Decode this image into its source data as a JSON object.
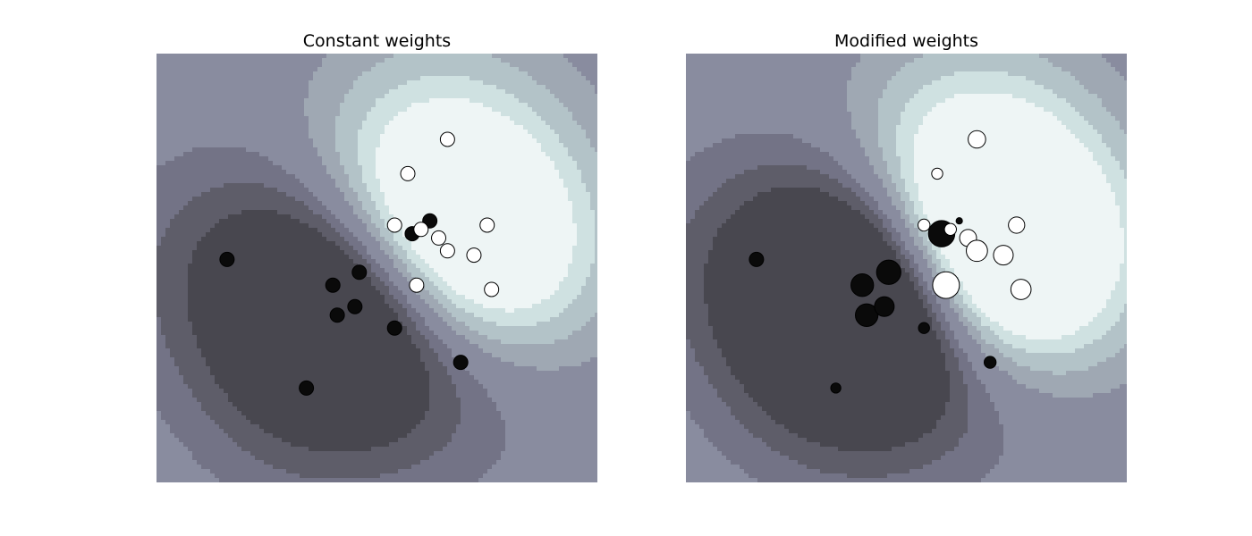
{
  "chart_data": [
    {
      "type": "scatter",
      "title": "Constant weights",
      "grid": false,
      "colors": {
        "class_pos": "#ffffff",
        "class_neg": "#0a0a0a",
        "levels": [
          "#48474f",
          "#5e5d69",
          "#737386",
          "#898c9f",
          "#9fa8b3",
          "#b3c3c8",
          "#cfe1e1",
          "#eef5f5"
        ]
      },
      "points": [
        {
          "x": 0.16,
          "y": 0.52,
          "class": "neg",
          "weight": 1
        },
        {
          "x": 0.4,
          "y": 0.46,
          "class": "neg",
          "weight": 1
        },
        {
          "x": 0.46,
          "y": 0.49,
          "class": "neg",
          "weight": 1
        },
        {
          "x": 0.41,
          "y": 0.39,
          "class": "neg",
          "weight": 1
        },
        {
          "x": 0.45,
          "y": 0.41,
          "class": "neg",
          "weight": 1
        },
        {
          "x": 0.54,
          "y": 0.36,
          "class": "neg",
          "weight": 1
        },
        {
          "x": 0.69,
          "y": 0.28,
          "class": "neg",
          "weight": 1
        },
        {
          "x": 0.34,
          "y": 0.22,
          "class": "neg",
          "weight": 1
        },
        {
          "x": 0.58,
          "y": 0.58,
          "class": "neg",
          "weight": 1
        },
        {
          "x": 0.62,
          "y": 0.61,
          "class": "neg",
          "weight": 1
        },
        {
          "x": 0.66,
          "y": 0.8,
          "class": "pos",
          "weight": 1
        },
        {
          "x": 0.57,
          "y": 0.72,
          "class": "pos",
          "weight": 1
        },
        {
          "x": 0.54,
          "y": 0.6,
          "class": "pos",
          "weight": 1
        },
        {
          "x": 0.6,
          "y": 0.59,
          "class": "pos",
          "weight": 1
        },
        {
          "x": 0.64,
          "y": 0.57,
          "class": "pos",
          "weight": 1
        },
        {
          "x": 0.66,
          "y": 0.54,
          "class": "pos",
          "weight": 1
        },
        {
          "x": 0.72,
          "y": 0.53,
          "class": "pos",
          "weight": 1
        },
        {
          "x": 0.75,
          "y": 0.6,
          "class": "pos",
          "weight": 1
        },
        {
          "x": 0.59,
          "y": 0.46,
          "class": "pos",
          "weight": 1
        },
        {
          "x": 0.76,
          "y": 0.45,
          "class": "pos",
          "weight": 1
        }
      ]
    },
    {
      "type": "scatter",
      "title": "Modified weights",
      "grid": false,
      "colors": {
        "class_pos": "#ffffff",
        "class_neg": "#0a0a0a",
        "levels": [
          "#48474f",
          "#5e5d69",
          "#737386",
          "#898c9f",
          "#9fa8b3",
          "#b3c3c8",
          "#cfe1e1",
          "#eef5f5"
        ]
      },
      "points": [
        {
          "x": 0.16,
          "y": 0.52,
          "class": "neg",
          "weight": 1.0
        },
        {
          "x": 0.4,
          "y": 0.46,
          "class": "neg",
          "weight": 2.5
        },
        {
          "x": 0.46,
          "y": 0.49,
          "class": "neg",
          "weight": 2.9
        },
        {
          "x": 0.41,
          "y": 0.39,
          "class": "neg",
          "weight": 2.5
        },
        {
          "x": 0.45,
          "y": 0.41,
          "class": "neg",
          "weight": 1.9
        },
        {
          "x": 0.54,
          "y": 0.36,
          "class": "neg",
          "weight": 0.6
        },
        {
          "x": 0.69,
          "y": 0.28,
          "class": "neg",
          "weight": 0.7
        },
        {
          "x": 0.34,
          "y": 0.22,
          "class": "neg",
          "weight": 0.5
        },
        {
          "x": 0.58,
          "y": 0.58,
          "class": "neg",
          "weight": 3.4
        },
        {
          "x": 0.62,
          "y": 0.61,
          "class": "neg",
          "weight": 0.2
        },
        {
          "x": 0.66,
          "y": 0.8,
          "class": "pos",
          "weight": 1.5
        },
        {
          "x": 0.57,
          "y": 0.72,
          "class": "pos",
          "weight": 0.6
        },
        {
          "x": 0.54,
          "y": 0.6,
          "class": "pos",
          "weight": 0.7
        },
        {
          "x": 0.6,
          "y": 0.59,
          "class": "pos",
          "weight": 0.7
        },
        {
          "x": 0.64,
          "y": 0.57,
          "class": "pos",
          "weight": 1.4
        },
        {
          "x": 0.66,
          "y": 0.54,
          "class": "pos",
          "weight": 2.2
        },
        {
          "x": 0.72,
          "y": 0.53,
          "class": "pos",
          "weight": 1.9
        },
        {
          "x": 0.75,
          "y": 0.6,
          "class": "pos",
          "weight": 1.3
        },
        {
          "x": 0.59,
          "y": 0.46,
          "class": "pos",
          "weight": 3.5
        },
        {
          "x": 0.76,
          "y": 0.45,
          "class": "pos",
          "weight": 2.0
        }
      ]
    }
  ]
}
